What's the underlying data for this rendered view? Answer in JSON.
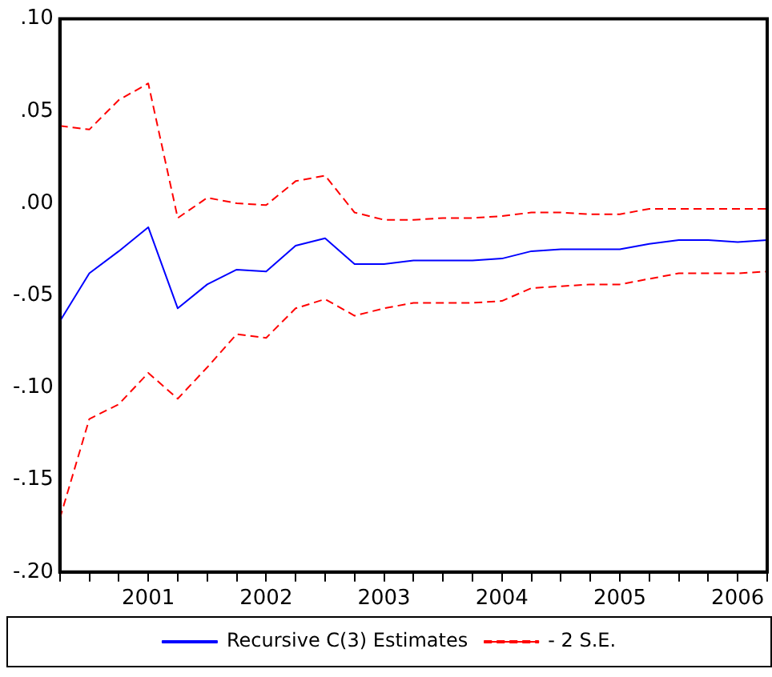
{
  "chart_data": {
    "type": "line",
    "categories": [
      null,
      null,
      null,
      "2001",
      null,
      null,
      null,
      "2002",
      null,
      null,
      null,
      "2003",
      null,
      null,
      null,
      "2004",
      null,
      null,
      null,
      "2005",
      null,
      null,
      null,
      "2006",
      null
    ],
    "series": [
      {
        "name": "Recursive C(3) Estimates",
        "color": "#0000ff",
        "line_style": "solid",
        "values": [
          -0.064,
          -0.038,
          -0.026,
          -0.013,
          -0.057,
          -0.044,
          -0.036,
          -0.037,
          -0.023,
          -0.019,
          -0.033,
          -0.033,
          -0.031,
          -0.031,
          -0.031,
          -0.03,
          -0.026,
          -0.025,
          -0.025,
          -0.025,
          -0.022,
          -0.02,
          -0.02,
          -0.021,
          -0.02
        ]
      },
      {
        "name": "- 2 S.E.",
        "color": "#ff0000",
        "line_style": "dashed",
        "values": [
          0.042,
          0.04,
          0.056,
          0.065,
          -0.008,
          0.003,
          0.0,
          -0.001,
          0.012,
          0.015,
          -0.005,
          -0.009,
          -0.009,
          -0.008,
          -0.008,
          -0.007,
          -0.005,
          -0.005,
          -0.006,
          -0.006,
          -0.003,
          -0.003,
          -0.003,
          -0.003,
          -0.003
        ]
      },
      {
        "color": "#ff0000",
        "line_style": "dashed",
        "values": [
          -0.171,
          -0.117,
          -0.109,
          -0.092,
          -0.106,
          -0.089,
          -0.071,
          -0.073,
          -0.057,
          -0.052,
          -0.061,
          -0.057,
          -0.054,
          -0.054,
          -0.054,
          -0.053,
          -0.046,
          -0.045,
          -0.044,
          -0.044,
          -0.041,
          -0.038,
          -0.038,
          -0.038,
          -0.037
        ]
      }
    ],
    "ylim": [
      -0.2,
      0.1
    ],
    "yticks": [
      {
        "value": 0.1,
        "label": ".10"
      },
      {
        "value": 0.05,
        "label": ".05"
      },
      {
        "value": 0,
        "label": ".00"
      },
      {
        "value": -0.05,
        "label": "-.05"
      },
      {
        "value": -0.1,
        "label": "-.10"
      },
      {
        "value": -0.15,
        "label": "-.15"
      },
      {
        "value": -0.2,
        "label": "-.20"
      }
    ],
    "grid": false,
    "legend": "bottom",
    "marker": "none"
  }
}
